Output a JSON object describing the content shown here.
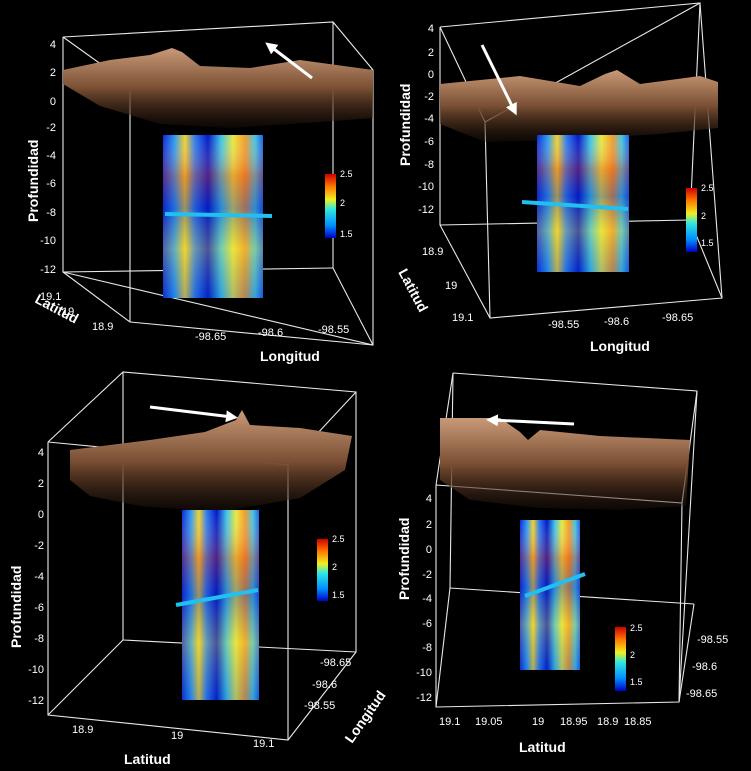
{
  "axis_labels": {
    "depth": "Profundidad",
    "lat": "Latitud",
    "lon": "Longitud"
  },
  "colorbar": {
    "max": "2.5",
    "mid": "2",
    "min": "1.5"
  },
  "panels": [
    {
      "depth_ticks": [
        "4",
        "2",
        "0",
        "-2",
        "-4",
        "-6",
        "-8",
        "-10",
        "-12"
      ],
      "lat_ticks": [
        "19.1",
        "19",
        "18.9"
      ],
      "lon_ticks": [
        "-98.65",
        "-98.6",
        "-98.55"
      ]
    },
    {
      "depth_ticks": [
        "4",
        "2",
        "0",
        "-2",
        "-4",
        "-6",
        "-8",
        "-10",
        "-12"
      ],
      "lat_ticks": [
        "18.9",
        "19",
        "19.1"
      ],
      "lon_ticks": [
        "-98.55",
        "-98.6",
        "-98.65"
      ]
    },
    {
      "depth_ticks": [
        "4",
        "2",
        "0",
        "-2",
        "-4",
        "-6",
        "-8",
        "-10",
        "-12"
      ],
      "lat_ticks": [
        "18.9",
        "19",
        "19.1"
      ],
      "lon_ticks": [
        "-98.65",
        "-98.6",
        "-98.55"
      ]
    },
    {
      "depth_ticks": [
        "4",
        "2",
        "0",
        "-2",
        "-4",
        "-6",
        "-8",
        "-10",
        "-12"
      ],
      "lat_ticks": [
        "19.1",
        "19.05",
        "19",
        "18.95",
        "18.9",
        "18.85"
      ],
      "lon_ticks": [
        "-98.55",
        "-98.6",
        "-98.65"
      ]
    }
  ]
}
